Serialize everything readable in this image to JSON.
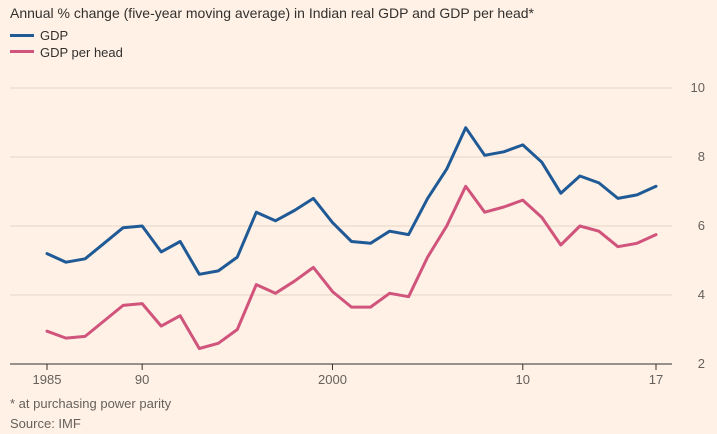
{
  "chart_data": {
    "type": "line",
    "title": "Annual % change (five-year moving average) in Indian real GDP and GDP per head*",
    "x": [
      1985,
      1986,
      1987,
      1988,
      1989,
      1990,
      1991,
      1992,
      1993,
      1994,
      1995,
      1996,
      1997,
      1998,
      1999,
      2000,
      2001,
      2002,
      2003,
      2004,
      2005,
      2006,
      2007,
      2008,
      2009,
      2010,
      2011,
      2012,
      2013,
      2014,
      2015,
      2016,
      2017
    ],
    "x_tick_values": [
      1985,
      1990,
      2000,
      2010,
      2017
    ],
    "x_tick_labels": [
      "1985",
      "90",
      "2000",
      "10",
      "17"
    ],
    "y_ticks": [
      2,
      4,
      6,
      8,
      10
    ],
    "ylim": [
      2,
      10
    ],
    "xlim": [
      1985,
      2017
    ],
    "grid": true,
    "legend_position": "top-left",
    "series": [
      {
        "name": "GDP",
        "color": "#1f5a96",
        "values": [
          5.2,
          4.95,
          5.05,
          5.5,
          5.95,
          6.0,
          5.25,
          5.55,
          4.6,
          4.7,
          5.1,
          6.4,
          6.15,
          6.45,
          6.8,
          6.1,
          5.55,
          5.5,
          5.85,
          5.75,
          6.8,
          7.65,
          8.85,
          8.05,
          8.15,
          8.35,
          7.85,
          6.95,
          7.45,
          7.25,
          6.8,
          6.9,
          7.15
        ]
      },
      {
        "name": "GDP per head",
        "color": "#d0547c",
        "values": [
          2.95,
          2.75,
          2.8,
          3.25,
          3.7,
          3.75,
          3.1,
          3.4,
          2.45,
          2.6,
          3.0,
          4.3,
          4.05,
          4.4,
          4.8,
          4.1,
          3.65,
          3.65,
          4.05,
          3.95,
          5.1,
          6.0,
          7.15,
          6.4,
          6.55,
          6.75,
          6.25,
          5.45,
          6.0,
          5.85,
          5.4,
          5.5,
          5.75
        ]
      }
    ],
    "footnotes": [
      "* at purchasing power parity",
      "Source: IMF"
    ]
  }
}
